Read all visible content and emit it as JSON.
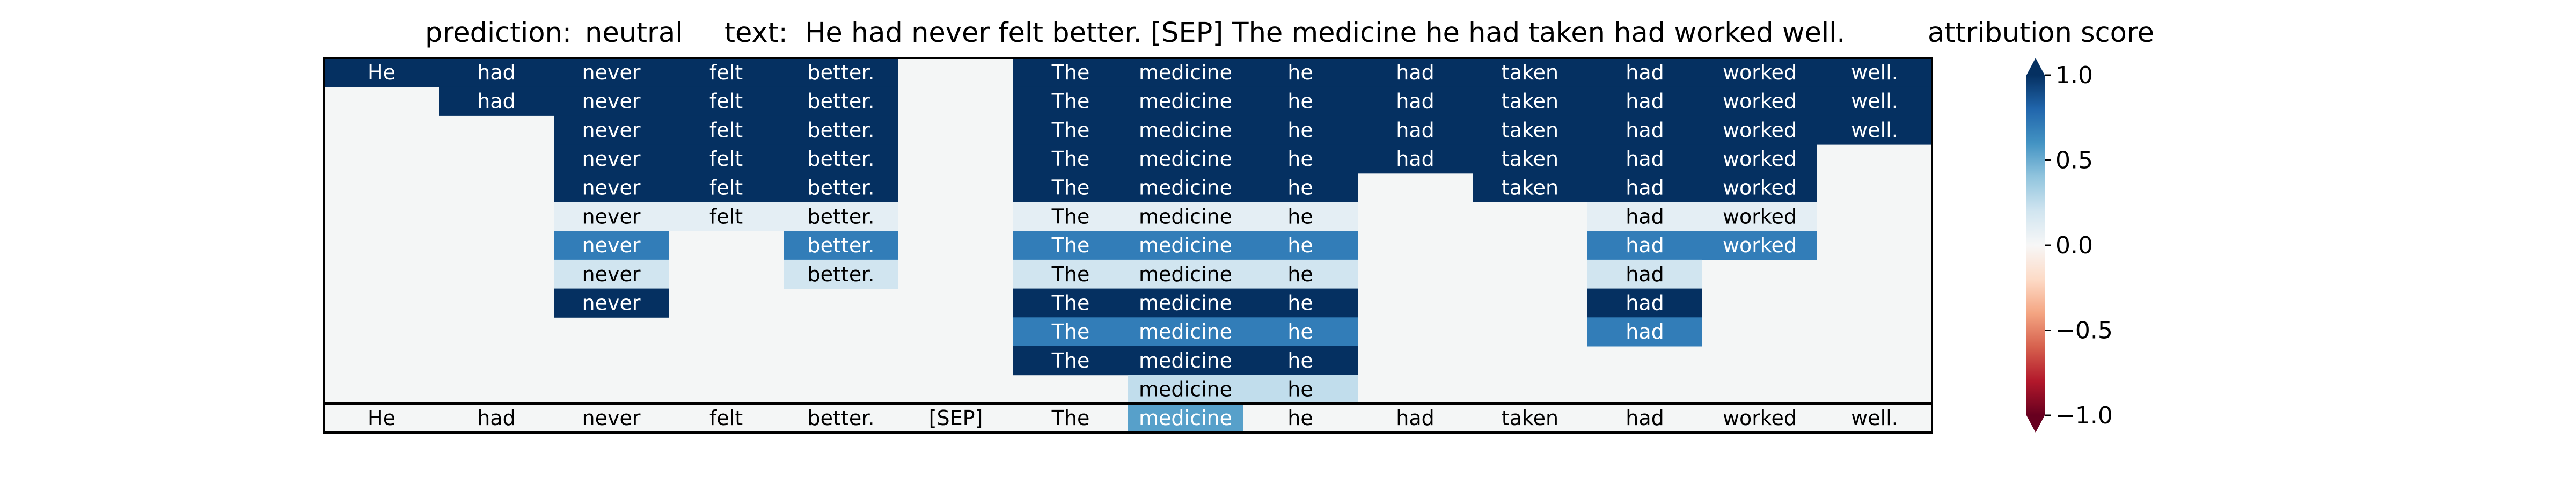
{
  "header": {
    "prediction_label": "prediction:",
    "prediction_value": "neutral",
    "text_label": "text:",
    "text_value": "He had never felt better. [SEP] The medicine he had taken had worked well.",
    "colorbar_title": "attribution score"
  },
  "colors": {
    "positive_max": "#053061",
    "neutral": "#f7f7f7",
    "negative_max": "#67001f",
    "background_cell": "#f4f6f6",
    "grid_border": "#000000"
  },
  "chart_data": {
    "type": "heatmap",
    "tokens": [
      "He",
      "had",
      "never",
      "felt",
      "better.",
      "[SEP]",
      "The",
      "medicine",
      "he",
      "had",
      "taken",
      "had",
      "worked",
      "well."
    ],
    "rows": [
      [
        1.0,
        1.0,
        1.0,
        1.0,
        1.0,
        null,
        1.0,
        1.0,
        1.0,
        1.0,
        1.0,
        1.0,
        1.0,
        1.0
      ],
      [
        null,
        1.0,
        1.0,
        1.0,
        1.0,
        null,
        1.0,
        1.0,
        1.0,
        1.0,
        1.0,
        1.0,
        1.0,
        1.0
      ],
      [
        null,
        null,
        1.0,
        1.0,
        1.0,
        null,
        1.0,
        1.0,
        1.0,
        1.0,
        1.0,
        1.0,
        1.0,
        1.0
      ],
      [
        null,
        null,
        1.0,
        1.0,
        1.0,
        null,
        1.0,
        1.0,
        1.0,
        1.0,
        1.0,
        1.0,
        1.0,
        null
      ],
      [
        null,
        null,
        1.0,
        1.0,
        1.0,
        null,
        1.0,
        1.0,
        1.0,
        null,
        1.0,
        1.0,
        1.0,
        null
      ],
      [
        null,
        null,
        0.1,
        0.1,
        0.1,
        null,
        0.1,
        0.1,
        0.1,
        null,
        null,
        0.1,
        0.1,
        null
      ],
      [
        null,
        null,
        0.7,
        null,
        0.7,
        null,
        0.7,
        0.7,
        0.7,
        null,
        null,
        0.7,
        0.7,
        null
      ],
      [
        null,
        null,
        0.2,
        null,
        0.2,
        null,
        0.2,
        0.2,
        0.2,
        null,
        null,
        0.2,
        null,
        null
      ],
      [
        null,
        null,
        1.0,
        null,
        null,
        null,
        1.0,
        1.0,
        1.0,
        null,
        null,
        1.0,
        null,
        null
      ],
      [
        null,
        null,
        null,
        null,
        null,
        null,
        0.7,
        0.7,
        0.7,
        null,
        null,
        0.7,
        null,
        null
      ],
      [
        null,
        null,
        null,
        null,
        null,
        null,
        1.0,
        1.0,
        1.0,
        null,
        null,
        null,
        null,
        null
      ],
      [
        null,
        null,
        null,
        null,
        null,
        null,
        null,
        0.25,
        0.25,
        null,
        null,
        null,
        null,
        null
      ]
    ],
    "summary_row": [
      0.0,
      0.0,
      0.0,
      0.0,
      0.0,
      0.0,
      0.0,
      0.55,
      0.0,
      0.0,
      0.0,
      0.0,
      0.0,
      0.0
    ],
    "colorbar": {
      "range": [
        -1.0,
        1.0
      ],
      "ticks": [
        1.0,
        0.5,
        0.0,
        -0.5,
        -1.0
      ],
      "tick_labels": [
        "1.0",
        "0.5",
        "0.0",
        "−0.5",
        "−1.0"
      ],
      "extend": "both",
      "colormap": "RdBu"
    }
  }
}
